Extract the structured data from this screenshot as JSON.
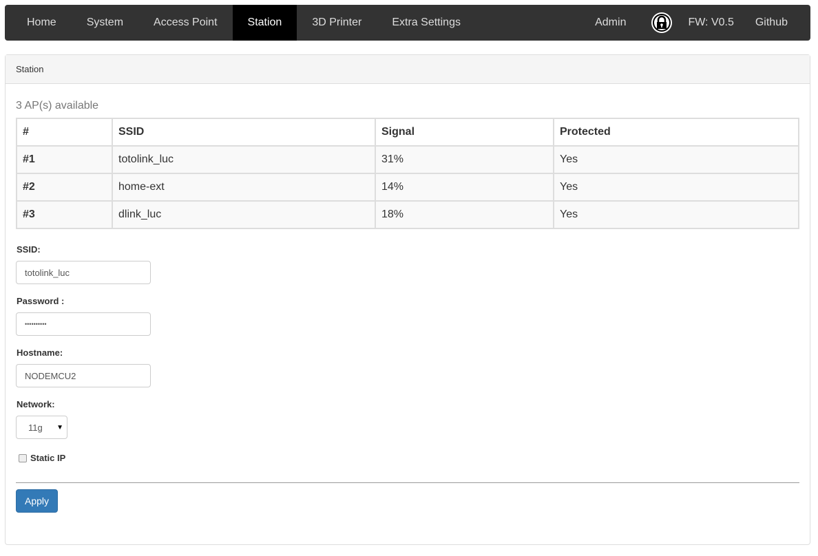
{
  "nav": {
    "items": [
      "Home",
      "System",
      "Access Point",
      "Station",
      "3D Printer",
      "Extra Settings"
    ],
    "active": "Station",
    "admin": "Admin",
    "lock_icon": "lock-icon",
    "fw": "FW: V0.5",
    "github": "Github"
  },
  "panel": {
    "title": "Station",
    "available": "3 AP(s) available",
    "table": {
      "headers": [
        "#",
        "SSID",
        "Signal",
        "Protected"
      ],
      "rows": [
        [
          "#1",
          "totolink_luc",
          "31%",
          "Yes"
        ],
        [
          "#2",
          "home-ext",
          "14%",
          "Yes"
        ],
        [
          "#3",
          "dlink_luc",
          "18%",
          "Yes"
        ]
      ]
    },
    "form": {
      "ssid_label": "SSID:",
      "ssid": "totolink_luc",
      "password_label": "Password :",
      "password": "••••••••••",
      "hostname_label": "Hostname:",
      "hostname": "NODEMCU2",
      "network_label": "Network:",
      "network": "11g",
      "static_ip_label": "Static IP",
      "static_ip_checked": false,
      "apply": "Apply"
    }
  },
  "colors": {
    "navbar": "#333333",
    "active": "#000000",
    "primary": "#337ab7"
  }
}
